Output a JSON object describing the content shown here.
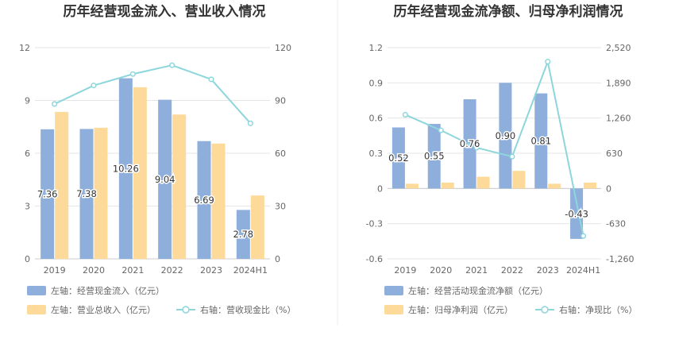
{
  "colors": {
    "left_bar": "#8eaedc",
    "right_bar": "#fdd99a",
    "line": "#8dd6dc",
    "grid": "#e6e6e6",
    "divider": "#eeeeee"
  },
  "chart_data": [
    {
      "type": "bar+line",
      "title": "历年经营现金流入、营业收入情况",
      "categories": [
        "2019",
        "2020",
        "2021",
        "2022",
        "2023",
        "2024H1"
      ],
      "left_axis": {
        "ticks": [
          "0",
          "3",
          "6",
          "9",
          "12"
        ],
        "range": [
          0,
          12
        ]
      },
      "right_axis": {
        "ticks": [
          "0",
          "30",
          "60",
          "90",
          "120"
        ],
        "range": [
          0,
          120
        ]
      },
      "series": [
        {
          "name": "左轴：经营现金流入（亿元）",
          "kind": "bar",
          "axis": "left",
          "values": [
            7.36,
            7.38,
            10.26,
            9.04,
            6.69,
            2.78
          ],
          "labels": [
            "7.36",
            "7.38",
            "10.26",
            "9.04",
            "6.69",
            "2.78"
          ]
        },
        {
          "name": "左轴：营业总收入（亿元）",
          "kind": "bar",
          "axis": "left",
          "values": [
            8.35,
            7.45,
            9.75,
            8.2,
            6.55,
            3.6
          ]
        },
        {
          "name": "右轴：营收现金比（%）",
          "kind": "line",
          "axis": "right",
          "values": [
            88,
            98.5,
            105,
            110,
            102,
            77
          ]
        }
      ]
    },
    {
      "type": "bar+line",
      "title": "历年经营现金流净额、归母净利润情况",
      "categories": [
        "2019",
        "2020",
        "2021",
        "2022",
        "2023",
        "2024H1"
      ],
      "left_axis": {
        "ticks": [
          "-0.6",
          "-0.3",
          "0",
          "0.3",
          "0.6",
          "0.9",
          "1.2"
        ],
        "range": [
          -0.6,
          1.2
        ]
      },
      "right_axis": {
        "ticks": [
          "-1,260",
          "-630",
          "0",
          "630",
          "1,260",
          "1,890",
          "2,520"
        ],
        "range": [
          -1260,
          2520
        ]
      },
      "series": [
        {
          "name": "左轴：经营活动现金流净额（亿元）",
          "kind": "bar",
          "axis": "left",
          "values": [
            0.52,
            0.55,
            0.76,
            0.9,
            0.81,
            -0.43
          ],
          "labels": [
            "0.52",
            "0.55",
            "0.76",
            "0.90",
            "0.81",
            "-0.43"
          ]
        },
        {
          "name": "左轴：归母净利润（亿元）",
          "kind": "bar",
          "axis": "left",
          "values": [
            0.04,
            0.05,
            0.1,
            0.15,
            0.04,
            0.05
          ]
        },
        {
          "name": "右轴：净现比（%）",
          "kind": "line",
          "axis": "right",
          "values": [
            1320,
            1040,
            730,
            570,
            2270,
            -850
          ]
        }
      ]
    }
  ]
}
